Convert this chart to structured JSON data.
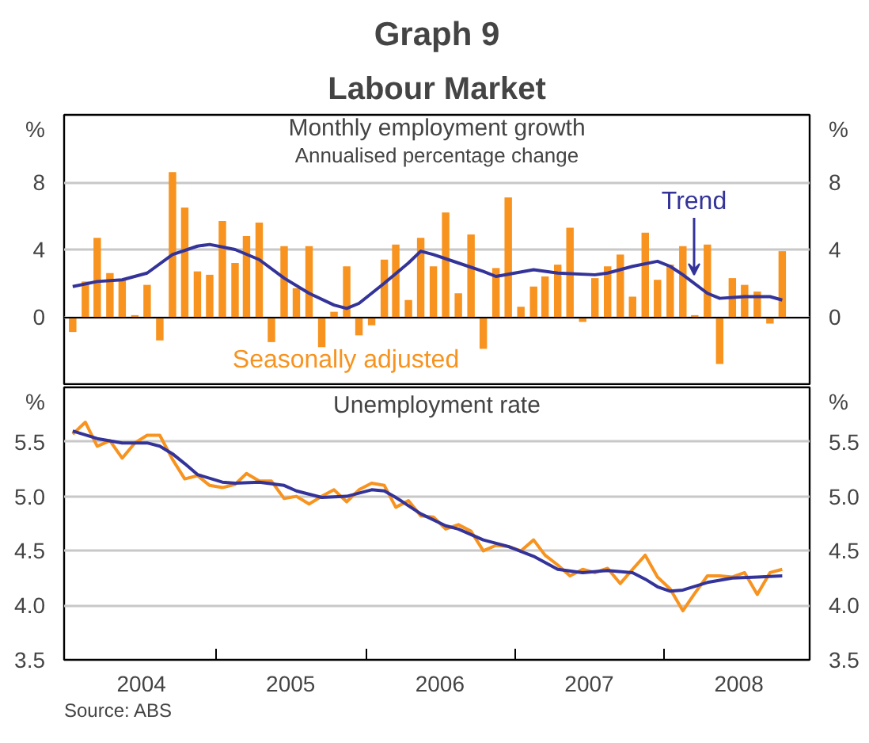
{
  "chart_data": [
    {
      "type": "bar",
      "title": "Graph 9",
      "subtitle": "Labour Market",
      "ylabel": "%",
      "y2label": "%",
      "annotations": [
        "Monthly employment growth",
        "Annualised percentage change"
      ],
      "x": [
        "2004-01-15",
        "2004-02-15",
        "2004-03-15",
        "2004-04-15",
        "2004-05-15",
        "2004-06-15",
        "2004-07-15",
        "2004-08-15",
        "2004-09-15",
        "2004-10-15",
        "2004-11-15",
        "2004-12-15",
        "2005-01-15",
        "2005-02-15",
        "2005-03-15",
        "2005-04-15",
        "2005-05-15",
        "2005-06-15",
        "2005-07-15",
        "2005-08-15",
        "2005-09-15",
        "2005-10-15",
        "2005-11-15",
        "2005-12-15",
        "2006-01-15",
        "2006-02-15",
        "2006-03-15",
        "2006-04-15",
        "2006-05-15",
        "2006-06-15",
        "2006-07-15",
        "2006-08-15",
        "2006-09-15",
        "2006-10-15",
        "2006-11-15",
        "2006-12-15",
        "2007-01-15",
        "2007-02-15",
        "2007-03-15",
        "2007-04-15",
        "2007-05-15",
        "2007-06-15",
        "2007-07-15",
        "2007-08-15",
        "2007-09-15",
        "2007-10-15",
        "2007-11-15",
        "2007-12-15",
        "2008-01-15",
        "2008-02-15",
        "2008-03-15",
        "2008-04-15",
        "2008-05-15",
        "2008-06-15",
        "2008-07-15",
        "2008-08-15",
        "2008-09-15",
        "2008-10-15"
      ],
      "series": [
        {
          "name": "Seasonally adjusted",
          "type": "bar",
          "color": "#f7931e",
          "values": [
            -0.9,
            2.1,
            4.7,
            2.6,
            2.2,
            0.1,
            1.9,
            -1.4,
            8.6,
            6.5,
            2.7,
            2.5,
            5.7,
            3.2,
            4.8,
            5.6,
            -1.5,
            4.2,
            1.7,
            4.2,
            -1.8,
            0.3,
            3.0,
            -1.1,
            -0.5,
            3.4,
            4.3,
            1.0,
            4.7,
            3.0,
            6.2,
            1.4,
            4.9,
            -1.9,
            2.9,
            7.1,
            0.6,
            1.8,
            2.4,
            3.1,
            5.3,
            -0.3,
            2.3,
            3.0,
            3.7,
            1.2,
            5.0,
            2.2,
            3.1,
            4.2,
            0.1,
            4.3,
            -2.8,
            2.3,
            1.9,
            1.5,
            -0.4,
            3.9
          ]
        },
        {
          "name": "Trend",
          "type": "line",
          "color": "#333399",
          "x": [
            "2004-01-15",
            "2004-03-15",
            "2004-05-15",
            "2004-07-15",
            "2004-09-15",
            "2004-11-15",
            "2004-12-15",
            "2005-02-15",
            "2005-04-15",
            "2005-06-15",
            "2005-08-15",
            "2005-10-15",
            "2005-11-15",
            "2005-12-15",
            "2006-02-15",
            "2006-04-15",
            "2006-05-15",
            "2006-06-15",
            "2006-08-15",
            "2006-10-15",
            "2006-11-15",
            "2007-02-15",
            "2007-04-15",
            "2007-07-15",
            "2007-08-15",
            "2007-10-15",
            "2007-12-15",
            "2008-01-15",
            "2008-02-15",
            "2008-04-15",
            "2008-05-15",
            "2008-07-15",
            "2008-09-15",
            "2008-10-15"
          ],
          "values": [
            1.8,
            2.1,
            2.2,
            2.6,
            3.7,
            4.2,
            4.3,
            4.0,
            3.4,
            2.3,
            1.4,
            0.7,
            0.5,
            0.8,
            2.0,
            3.2,
            3.9,
            3.7,
            3.2,
            2.7,
            2.4,
            2.8,
            2.6,
            2.5,
            2.6,
            3.0,
            3.3,
            3.0,
            2.5,
            1.4,
            1.1,
            1.2,
            1.2,
            1.0
          ]
        }
      ],
      "xlim": [
        "2003-12-25",
        "2008-12-21"
      ],
      "ylim": [
        -4,
        12
      ],
      "yticks": [
        0,
        4,
        8
      ],
      "y2lim": [
        -4,
        12
      ],
      "y2ticks": [
        0,
        4,
        8
      ],
      "grid": "y",
      "legend": false,
      "tick_labels": "y"
    },
    {
      "type": "line",
      "title": "Unemployment rate",
      "ylabel": "%",
      "y2label": "%",
      "annotations": [
        "Source: ABS"
      ],
      "x": [
        "2004-01-15",
        "2004-02-15",
        "2004-03-15",
        "2004-04-15",
        "2004-05-15",
        "2004-06-15",
        "2004-07-15",
        "2004-08-15",
        "2004-09-15",
        "2004-10-15",
        "2004-11-15",
        "2004-12-15",
        "2005-01-15",
        "2005-02-15",
        "2005-03-15",
        "2005-04-15",
        "2005-05-15",
        "2005-06-15",
        "2005-07-15",
        "2005-08-15",
        "2005-09-15",
        "2005-10-15",
        "2005-11-15",
        "2005-12-15",
        "2006-01-15",
        "2006-02-15",
        "2006-03-15",
        "2006-04-15",
        "2006-05-15",
        "2006-06-15",
        "2006-07-15",
        "2006-08-15",
        "2006-09-15",
        "2006-10-15",
        "2006-11-15",
        "2006-12-15",
        "2007-01-15",
        "2007-02-15",
        "2007-03-15",
        "2007-04-15",
        "2007-05-15",
        "2007-06-15",
        "2007-07-15",
        "2007-08-15",
        "2007-09-15",
        "2007-10-15",
        "2007-11-15",
        "2007-12-15",
        "2008-01-15",
        "2008-02-15",
        "2008-03-15",
        "2008-04-15",
        "2008-05-15",
        "2008-06-15",
        "2008-07-15",
        "2008-08-15",
        "2008-09-15",
        "2008-10-15"
      ],
      "series": [
        {
          "color": "#f7931e",
          "values": [
            5.57,
            5.68,
            5.46,
            5.51,
            5.35,
            5.49,
            5.56,
            5.56,
            5.34,
            5.16,
            5.19,
            5.1,
            5.08,
            5.11,
            5.21,
            5.14,
            5.14,
            4.98,
            5.0,
            4.93,
            5.0,
            5.06,
            4.95,
            5.06,
            5.12,
            5.1,
            4.9,
            4.96,
            4.82,
            4.81,
            4.7,
            4.74,
            4.68,
            4.5,
            4.55,
            4.54,
            4.5,
            4.6,
            4.46,
            4.37,
            4.27,
            4.33,
            4.3,
            4.34,
            4.2,
            4.33,
            4.46,
            4.26,
            4.15,
            3.95,
            4.11,
            4.27,
            4.27,
            4.26,
            4.3,
            4.1,
            4.3,
            4.33
          ]
        },
        {
          "color": "#333399",
          "x": [
            "2004-01-15",
            "2004-03-15",
            "2004-05-15",
            "2004-07-15",
            "2004-08-15",
            "2004-09-15",
            "2004-10-15",
            "2004-11-15",
            "2005-01-15",
            "2005-02-15",
            "2005-04-15",
            "2005-06-15",
            "2005-07-15",
            "2005-09-15",
            "2005-11-15",
            "2006-01-15",
            "2006-02-15",
            "2006-03-15",
            "2006-05-15",
            "2006-07-15",
            "2006-08-15",
            "2006-10-15",
            "2006-12-15",
            "2007-02-15",
            "2007-04-15",
            "2007-06-15",
            "2007-08-15",
            "2007-10-15",
            "2007-11-15",
            "2007-12-15",
            "2008-01-15",
            "2008-02-15",
            "2008-04-15",
            "2008-06-15",
            "2008-08-15",
            "2008-10-15"
          ],
          "values": [
            5.6,
            5.53,
            5.49,
            5.49,
            5.46,
            5.39,
            5.3,
            5.2,
            5.13,
            5.12,
            5.13,
            5.1,
            5.05,
            4.99,
            5.0,
            5.06,
            5.05,
            4.99,
            4.84,
            4.73,
            4.7,
            4.6,
            4.54,
            4.45,
            4.33,
            4.3,
            4.32,
            4.3,
            4.24,
            4.17,
            4.13,
            4.14,
            4.21,
            4.25,
            4.26,
            4.27
          ]
        }
      ],
      "xlim": [
        "2003-12-25",
        "2008-12-21"
      ],
      "xticks": [
        {
          "value": "2004-07-01",
          "label": "2004"
        },
        {
          "value": "2005-07-01",
          "label": "2005"
        },
        {
          "value": "2006-07-01",
          "label": "2006"
        },
        {
          "value": "2007-07-01",
          "label": "2007"
        },
        {
          "value": "2008-07-01",
          "label": "2008"
        },
        {
          "value": "2005-01-01",
          "label": null
        },
        {
          "value": "2006-01-01",
          "label": null
        },
        {
          "value": "2007-01-01",
          "label": null
        },
        {
          "value": "2008-01-01",
          "label": null
        }
      ],
      "ylim": [
        3.5,
        6.0
      ],
      "yticks": [
        {
          "value": 3.5,
          "label": "3.5"
        },
        {
          "value": 4.0,
          "label": "4.0"
        },
        {
          "value": 4.5,
          "label": "4.5"
        },
        {
          "value": 5.0,
          "label": "5.0"
        },
        {
          "value": 5.5,
          "label": "5.5"
        }
      ],
      "y2lim": [
        3.5,
        6.0
      ],
      "y2ticks": [
        {
          "value": 3.5,
          "label": "3.5"
        },
        {
          "value": 4.0,
          "label": "4.0"
        },
        {
          "value": 4.5,
          "label": "4.5"
        },
        {
          "value": 5.0,
          "label": "5.0"
        },
        {
          "value": 5.5,
          "label": "5.5"
        }
      ],
      "grid": "y",
      "legend": false
    }
  ]
}
